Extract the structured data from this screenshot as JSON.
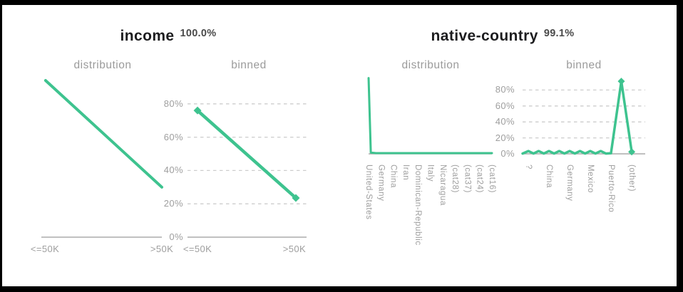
{
  "report": {
    "panels": [
      {
        "name": "income",
        "title": "income",
        "match_pct": "100.0%",
        "subtitles": [
          "distribution",
          "binned"
        ],
        "y_tick_labels": [
          "80%",
          "60%",
          "40%",
          "20%",
          "0%"
        ],
        "distribution": {
          "x_tick_labels": [
            "<=50K",
            ">50K"
          ]
        },
        "binned": {
          "x_tick_labels": [
            "<=50K",
            ">50K"
          ]
        }
      },
      {
        "name": "native-country",
        "title": "native-country",
        "match_pct": "99.1%",
        "subtitles": [
          "distribution",
          "binned"
        ],
        "y_tick_labels": [
          "80%",
          "60%",
          "40%",
          "20%",
          "0%"
        ],
        "distribution": {
          "x_tick_labels": [
            "United-States",
            "Germany",
            "China",
            "Iran",
            "Dominican-Republic",
            "Italy",
            "Nicaragua",
            "(cat28)",
            "(cat37)",
            "(cat24)",
            "(cat16)"
          ]
        },
        "binned": {
          "x_tick_labels": [
            "?",
            "China",
            "Germany",
            "Mexico",
            "Puerto-Rico",
            "(other)"
          ]
        }
      }
    ]
  },
  "colors": {
    "line": "#3EC38F",
    "grid_dash": "#cdcdcd",
    "axis": "#ababab",
    "tick_label": "#9e9e9e",
    "subtitle": "#9b9b9b",
    "title": "#1d1d1f",
    "match_pct": "#4a4a4a",
    "frame": "#000000",
    "background": "#ffffff"
  },
  "chart_data": [
    {
      "id": "income-distribution",
      "type": "line",
      "title": "income distribution",
      "categories": [
        "<=50K",
        ">50K"
      ],
      "values": [
        94,
        30
      ],
      "ylim": [
        0,
        100
      ],
      "grid": false,
      "markers": false,
      "points": [
        [
          0.035,
          94
        ],
        [
          1.0,
          30
        ]
      ],
      "marker_points": []
    },
    {
      "id": "income-binned",
      "type": "line",
      "title": "income binned",
      "categories": [
        "<=50K",
        ">50K"
      ],
      "values": [
        76,
        24
      ],
      "ylim": [
        0,
        100
      ],
      "grid": true,
      "grid_pcts": [
        80,
        60,
        40,
        20
      ],
      "markers": true,
      "points": [
        [
          0.084,
          76
        ],
        [
          0.91,
          23.5
        ]
      ],
      "marker_points": [
        [
          0.084,
          76
        ],
        [
          0.91,
          23.5
        ]
      ]
    },
    {
      "id": "native-country-distribution",
      "type": "line",
      "title": "native-country distribution",
      "categories": [
        "United-States",
        "Germany",
        "China",
        "Iran",
        "Dominican-Republic",
        "Italy",
        "Nicaragua",
        "(cat28)",
        "(cat37)",
        "(cat24)",
        "(cat16)"
      ],
      "values": [
        95,
        1,
        1,
        1,
        1,
        1,
        1,
        1,
        1,
        1,
        1
      ],
      "ylim": [
        0,
        100
      ],
      "grid": false,
      "markers": false,
      "points": [
        [
          0.0,
          95
        ],
        [
          0.018,
          1.6
        ],
        [
          0.06,
          0.9
        ],
        [
          1.0,
          0.9
        ]
      ],
      "marker_points": []
    },
    {
      "id": "native-country-binned",
      "type": "line",
      "title": "native-country binned",
      "categories": [
        "?",
        "China",
        "Germany",
        "Mexico",
        "Puerto-Rico",
        "(other)"
      ],
      "values": [
        3.5,
        3.5,
        3.5,
        3.5,
        3.5,
        3.5,
        3.5,
        3.5,
        0.8,
        91,
        2.5
      ],
      "ylim": [
        0,
        100
      ],
      "grid": true,
      "grid_pcts": [
        80,
        60,
        40,
        20
      ],
      "markers": true,
      "points": [
        [
          0.0,
          0.4
        ],
        [
          0.047,
          3.5
        ],
        [
          0.089,
          0.4
        ],
        [
          0.131,
          3.5
        ],
        [
          0.173,
          0.4
        ],
        [
          0.215,
          3.5
        ],
        [
          0.257,
          0.4
        ],
        [
          0.299,
          3.5
        ],
        [
          0.341,
          0.4
        ],
        [
          0.384,
          3.5
        ],
        [
          0.426,
          0.4
        ],
        [
          0.468,
          3.5
        ],
        [
          0.51,
          0.4
        ],
        [
          0.552,
          3.5
        ],
        [
          0.594,
          0.4
        ],
        [
          0.637,
          3.5
        ],
        [
          0.679,
          0.4
        ],
        [
          0.721,
          0.8
        ],
        [
          0.805,
          91
        ],
        [
          0.89,
          2.5
        ]
      ],
      "marker_points": [
        [
          0.805,
          91
        ],
        [
          0.89,
          2.5
        ]
      ]
    }
  ]
}
